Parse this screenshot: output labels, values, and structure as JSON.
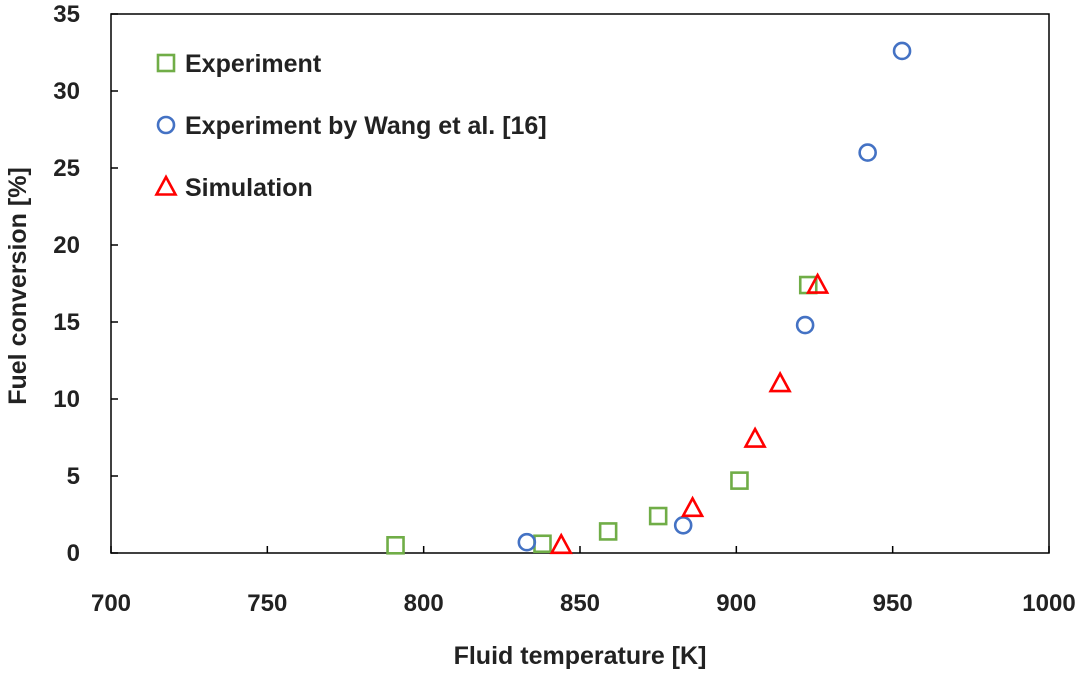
{
  "chart_data": {
    "type": "scatter",
    "xlabel": "Fluid temperature [K]",
    "ylabel": "Fuel conversion [%]",
    "xlim": [
      700,
      1000
    ],
    "ylim": [
      0,
      35
    ],
    "xticks": [
      700,
      750,
      800,
      850,
      900,
      950,
      1000
    ],
    "yticks": [
      0,
      5,
      10,
      15,
      20,
      25,
      30,
      35
    ],
    "grid": false,
    "legend_position": "top-left",
    "series": [
      {
        "name": "Experiment",
        "marker": "square",
        "color": "#70ad47",
        "points": [
          [
            791,
            0.5
          ],
          [
            838,
            0.6
          ],
          [
            859,
            1.4
          ],
          [
            875,
            2.4
          ],
          [
            901,
            4.7
          ],
          [
            923,
            17.4
          ]
        ]
      },
      {
        "name": "Experiment by Wang et al. [16]",
        "marker": "circle",
        "color": "#4472c4",
        "points": [
          [
            833,
            0.7
          ],
          [
            883,
            1.8
          ],
          [
            922,
            14.8
          ],
          [
            942,
            26.0
          ],
          [
            953,
            32.6
          ]
        ]
      },
      {
        "name": "Simulation",
        "marker": "triangle",
        "color": "#ff0000",
        "points": [
          [
            844,
            0.5
          ],
          [
            886,
            2.9
          ],
          [
            906,
            7.4
          ],
          [
            914,
            11.0
          ],
          [
            926,
            17.4
          ]
        ]
      }
    ]
  }
}
